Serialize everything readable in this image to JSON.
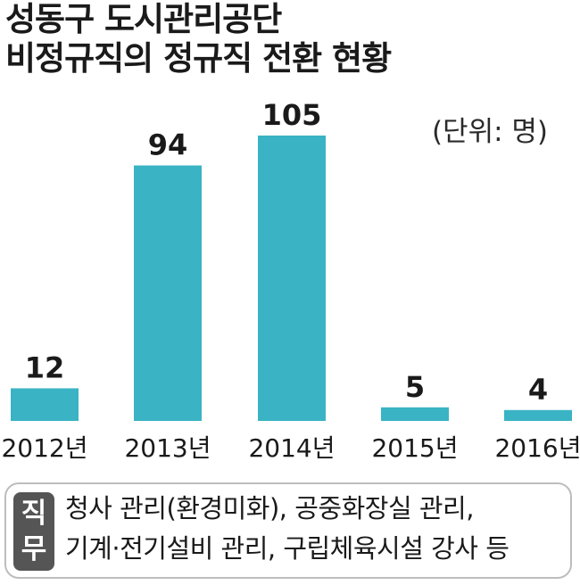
{
  "header": {
    "title_line1": "성동구 도시관리공단",
    "title_line2": "비정규직의 정규직 전환 현황",
    "unit": "(단위: 명)"
  },
  "chart_data": {
    "type": "bar",
    "title": "성동구 도시관리공단 비정규직의 정규직 전환 현황",
    "categories": [
      "2012년",
      "2013년",
      "2014년",
      "2015년",
      "2016년"
    ],
    "values": [
      12,
      94,
      105,
      5,
      4
    ],
    "unit": "명",
    "ylim": [
      0,
      105
    ],
    "grid": false,
    "bar_color": "#3ab3c4"
  },
  "legend": {
    "tag_line1": "직",
    "tag_line2": "무",
    "line1": "청사 관리(환경미화), 공중화장실 관리,",
    "line2": "기계·전기설비 관리, 구립체육시설 강사 등"
  }
}
